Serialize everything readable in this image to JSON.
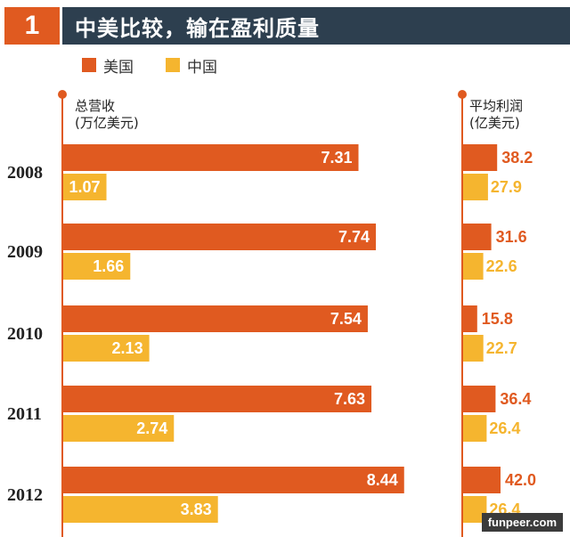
{
  "header": {
    "number": "1",
    "title": "中美比较，输在盈利质量"
  },
  "legend": [
    {
      "name": "美国",
      "color": "#e05a20"
    },
    {
      "name": "中国",
      "color": "#f5b52f"
    }
  ],
  "colors": {
    "us": "#e05a20",
    "cn": "#f5b52f",
    "axis": "#e05a20",
    "header_bg": "#2d3f4f"
  },
  "chart_data": [
    {
      "type": "bar",
      "orientation": "horizontal",
      "title": "总营收",
      "subtitle": "(万亿美元)",
      "categories": [
        "2008",
        "2009",
        "2010",
        "2011",
        "2012"
      ],
      "series": [
        {
          "name": "美国",
          "values": [
            7.31,
            7.74,
            7.54,
            7.63,
            8.44
          ]
        },
        {
          "name": "中国",
          "values": [
            1.07,
            1.66,
            2.13,
            2.74,
            3.83
          ]
        }
      ]
    },
    {
      "type": "bar",
      "orientation": "horizontal",
      "title": "平均利润",
      "subtitle": "(亿美元)",
      "categories": [
        "2008",
        "2009",
        "2010",
        "2011",
        "2012"
      ],
      "series": [
        {
          "name": "美国",
          "values": [
            "38.2",
            "31.6",
            "15.8",
            "36.4",
            "42.0"
          ]
        },
        {
          "name": "中国",
          "values": [
            "27.9",
            "22.6",
            "22.7",
            "26.4",
            "26.4"
          ]
        }
      ]
    }
  ],
  "watermark": "funpeer.com"
}
